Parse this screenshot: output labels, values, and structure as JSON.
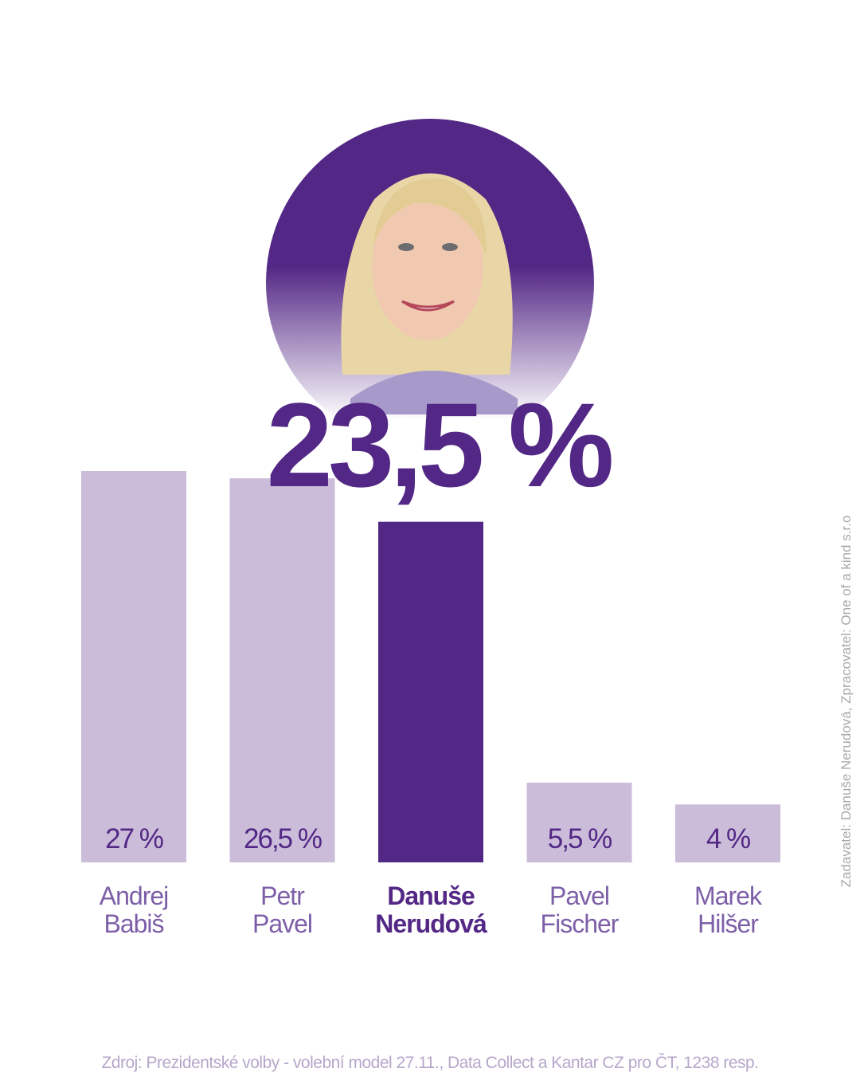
{
  "chart_data": {
    "type": "bar",
    "categories": [
      "Andrej\nBabiš",
      "Petr\nPavel",
      "Danuše\nNerudová",
      "Pavel\nFischer",
      "Marek\nHilšer"
    ],
    "values": [
      27,
      26.5,
      23.5,
      5.5,
      4
    ],
    "value_labels": [
      "27 %",
      "26,5 %",
      "23,5 %",
      "5,5 %",
      "4 %"
    ],
    "color": "#cbbdda",
    "highlight_color": "#532785",
    "highlight_index": 2,
    "source": "Zdroj: Prezidentské volby - volební model 27.11., Data Collect a Kantar CZ pro ČT, 1238 resp.",
    "credit": "Zadavatel: Danuše Nerudová, Zpracovatel: One of a kind s.r.o"
  }
}
